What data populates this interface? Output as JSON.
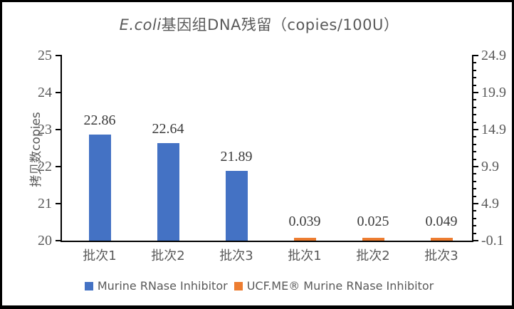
{
  "chart_data": {
    "type": "bar",
    "title": "E.coli基因组DNA残留（copies/100U）",
    "title_italic": "E.coli",
    "title_rest": "基因组DNA残留（copies/100U）",
    "ylabel_left": "拷贝数copies",
    "categories": [
      "批次1",
      "批次2",
      "批次3",
      "批次1",
      "批次2",
      "批次3"
    ],
    "series": [
      {
        "name": "Murine RNase Inhibitor",
        "color": "#4472C4",
        "axis": "left",
        "values": [
          22.86,
          22.64,
          21.89
        ],
        "value_labels": [
          "22.86",
          "22.64",
          "21.89"
        ],
        "category_indices": [
          0,
          1,
          2
        ]
      },
      {
        "name": "UCF.ME® Murine RNase Inhibitor",
        "color": "#ED7D31",
        "axis": "right",
        "values": [
          0.039,
          0.025,
          0.049
        ],
        "value_labels": [
          "0.039",
          "0.025",
          "0.049"
        ],
        "category_indices": [
          3,
          4,
          5
        ]
      }
    ],
    "left_axis": {
      "min": 20,
      "max": 25,
      "ticks": [
        {
          "value": 25,
          "label": "25"
        },
        {
          "value": 24,
          "label": "24"
        },
        {
          "value": 23,
          "label": "23"
        },
        {
          "value": 22,
          "label": "22"
        },
        {
          "value": 21,
          "label": "21"
        },
        {
          "value": 20,
          "label": "20"
        }
      ]
    },
    "right_axis": {
      "min": -0.1,
      "max": 24.9,
      "ticks": [
        {
          "value": 24.9,
          "label": "24.9"
        },
        {
          "value": 19.9,
          "label": "19.9"
        },
        {
          "value": 14.9,
          "label": "14.9"
        },
        {
          "value": 9.9,
          "label": "9.9"
        },
        {
          "value": 4.9,
          "label": "4.9"
        },
        {
          "value": -0.1,
          "label": "-0.1"
        }
      ],
      "minor_step": 1
    },
    "grid": false,
    "legend_position": "bottom"
  },
  "colors": {
    "series_blue": "#4472C4",
    "series_orange": "#ED7D31",
    "axis_line": "#000000",
    "text_gray": "#595959",
    "data_label": "#3b3b3b"
  }
}
